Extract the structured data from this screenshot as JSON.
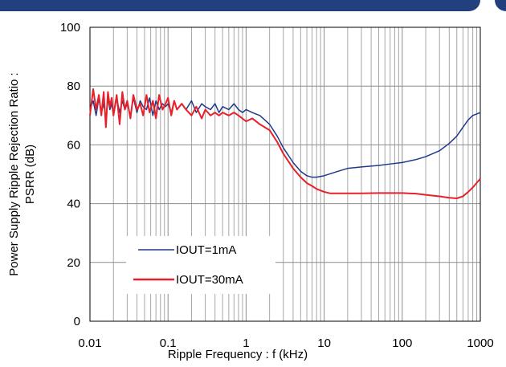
{
  "chart_data": {
    "type": "line",
    "xscale": "log",
    "xlim": [
      0.01,
      1000
    ],
    "ylim": [
      0,
      100
    ],
    "grid": true,
    "xlabel": "Ripple Frequency  : f (kHz)",
    "ylabel_lines": [
      "Power Supply Ripple Rejection Ratio :",
      "PSRR (dB)"
    ],
    "x_ticks": [
      0.01,
      0.1,
      1,
      10,
      100,
      1000
    ],
    "x_tick_labels": [
      "0.01",
      "0.1",
      "1",
      "10",
      "100",
      "1000"
    ],
    "y_ticks": [
      0,
      20,
      40,
      60,
      80,
      100
    ],
    "y_tick_labels": [
      "0",
      "20",
      "40",
      "60",
      "80",
      "100"
    ],
    "legend_placement": "lower-left",
    "series": [
      {
        "name": "IOUT=1mA",
        "color": "#1f3a8a",
        "x": [
          0.01,
          0.011,
          0.012,
          0.013,
          0.014,
          0.015,
          0.016,
          0.017,
          0.018,
          0.019,
          0.02,
          0.022,
          0.024,
          0.026,
          0.028,
          0.03,
          0.033,
          0.036,
          0.04,
          0.044,
          0.048,
          0.053,
          0.058,
          0.064,
          0.07,
          0.077,
          0.085,
          0.093,
          0.1,
          0.11,
          0.12,
          0.13,
          0.15,
          0.17,
          0.2,
          0.23,
          0.27,
          0.3,
          0.35,
          0.4,
          0.45,
          0.5,
          0.6,
          0.7,
          0.8,
          0.9,
          1,
          1.2,
          1.5,
          2,
          2.5,
          3,
          4,
          5,
          6,
          7,
          8,
          10,
          15,
          20,
          30,
          50,
          70,
          100,
          150,
          200,
          300,
          400,
          500,
          600,
          700,
          800,
          1000
        ],
        "y": [
          72,
          75,
          70,
          76,
          71,
          74,
          69,
          76,
          72,
          74,
          70,
          76,
          71,
          75,
          72,
          74,
          70,
          76,
          71,
          75,
          73,
          72,
          76,
          70,
          75,
          72,
          74,
          73,
          74,
          71,
          75,
          72,
          74,
          72,
          75,
          71,
          74,
          73,
          72,
          74,
          71,
          73,
          72,
          74,
          72,
          71,
          72,
          71,
          70,
          67,
          63,
          59,
          54,
          51,
          49.5,
          49,
          49,
          49.5,
          51,
          52,
          52.5,
          53,
          53.5,
          54,
          55,
          56,
          58,
          60.5,
          63,
          66,
          68.5,
          70,
          71
        ]
      },
      {
        "name": "IOUT=30mA",
        "color": "#e8202a",
        "x": [
          0.01,
          0.011,
          0.012,
          0.013,
          0.014,
          0.015,
          0.016,
          0.017,
          0.018,
          0.019,
          0.02,
          0.022,
          0.024,
          0.026,
          0.028,
          0.03,
          0.033,
          0.036,
          0.04,
          0.044,
          0.048,
          0.053,
          0.058,
          0.064,
          0.07,
          0.077,
          0.085,
          0.093,
          0.1,
          0.11,
          0.12,
          0.13,
          0.15,
          0.17,
          0.2,
          0.23,
          0.27,
          0.3,
          0.35,
          0.4,
          0.45,
          0.5,
          0.6,
          0.7,
          0.8,
          1,
          1.2,
          1.5,
          2,
          2.5,
          3,
          4,
          5,
          6,
          7,
          8,
          10,
          12,
          15,
          20,
          30,
          50,
          70,
          100,
          150,
          200,
          300,
          400,
          500,
          600,
          700,
          800,
          1000
        ],
        "y": [
          70,
          79,
          72,
          77,
          70,
          78,
          66,
          78,
          73,
          76,
          70,
          77,
          67,
          78,
          72,
          75,
          69,
          77,
          72,
          74,
          70,
          77,
          71,
          75,
          69,
          77,
          72,
          74,
          76,
          70,
          75,
          72,
          74,
          72,
          70,
          73,
          69,
          72,
          70,
          71,
          70,
          71,
          70,
          71,
          70,
          68,
          69,
          67,
          65,
          61,
          57,
          52,
          49,
          47,
          46,
          45,
          44,
          43.5,
          43.5,
          43.5,
          43.5,
          43.6,
          43.6,
          43.6,
          43.4,
          43,
          42.5,
          42,
          41.8,
          42.5,
          44,
          45.5,
          48.5
        ]
      }
    ]
  }
}
